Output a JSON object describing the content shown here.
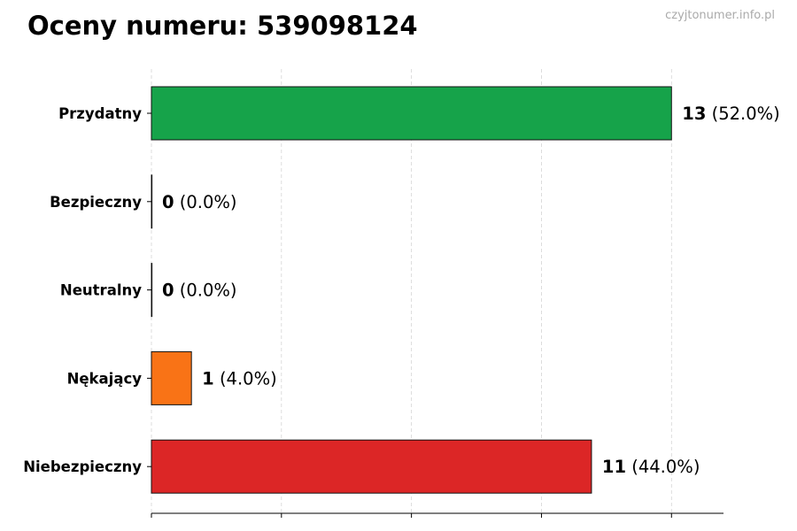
{
  "title": "Oceny numeru: 539098124",
  "watermark": "czyjtonumer.info.pl",
  "chart_data": {
    "type": "bar",
    "orientation": "horizontal",
    "title": "Oceny numeru: 539098124",
    "categories": [
      "Przydatny",
      "Bezpieczny",
      "Neutralny",
      "Nękający",
      "Niebezpieczny"
    ],
    "values": [
      13,
      0,
      0,
      1,
      11
    ],
    "labels": [
      "(52.0%)",
      "(0.0%)",
      "(0.0%)",
      "(4.0%)",
      "(44.0%)"
    ],
    "colors": [
      "#16a34a",
      "#2563eb",
      "#6b7280",
      "#f97316",
      "#dc2626"
    ],
    "xlim": [
      0,
      14.3
    ],
    "xticks": [
      0,
      3.25,
      6.5,
      9.75,
      13
    ],
    "grid": "x-dashed",
    "xlabel": "",
    "ylabel": ""
  }
}
